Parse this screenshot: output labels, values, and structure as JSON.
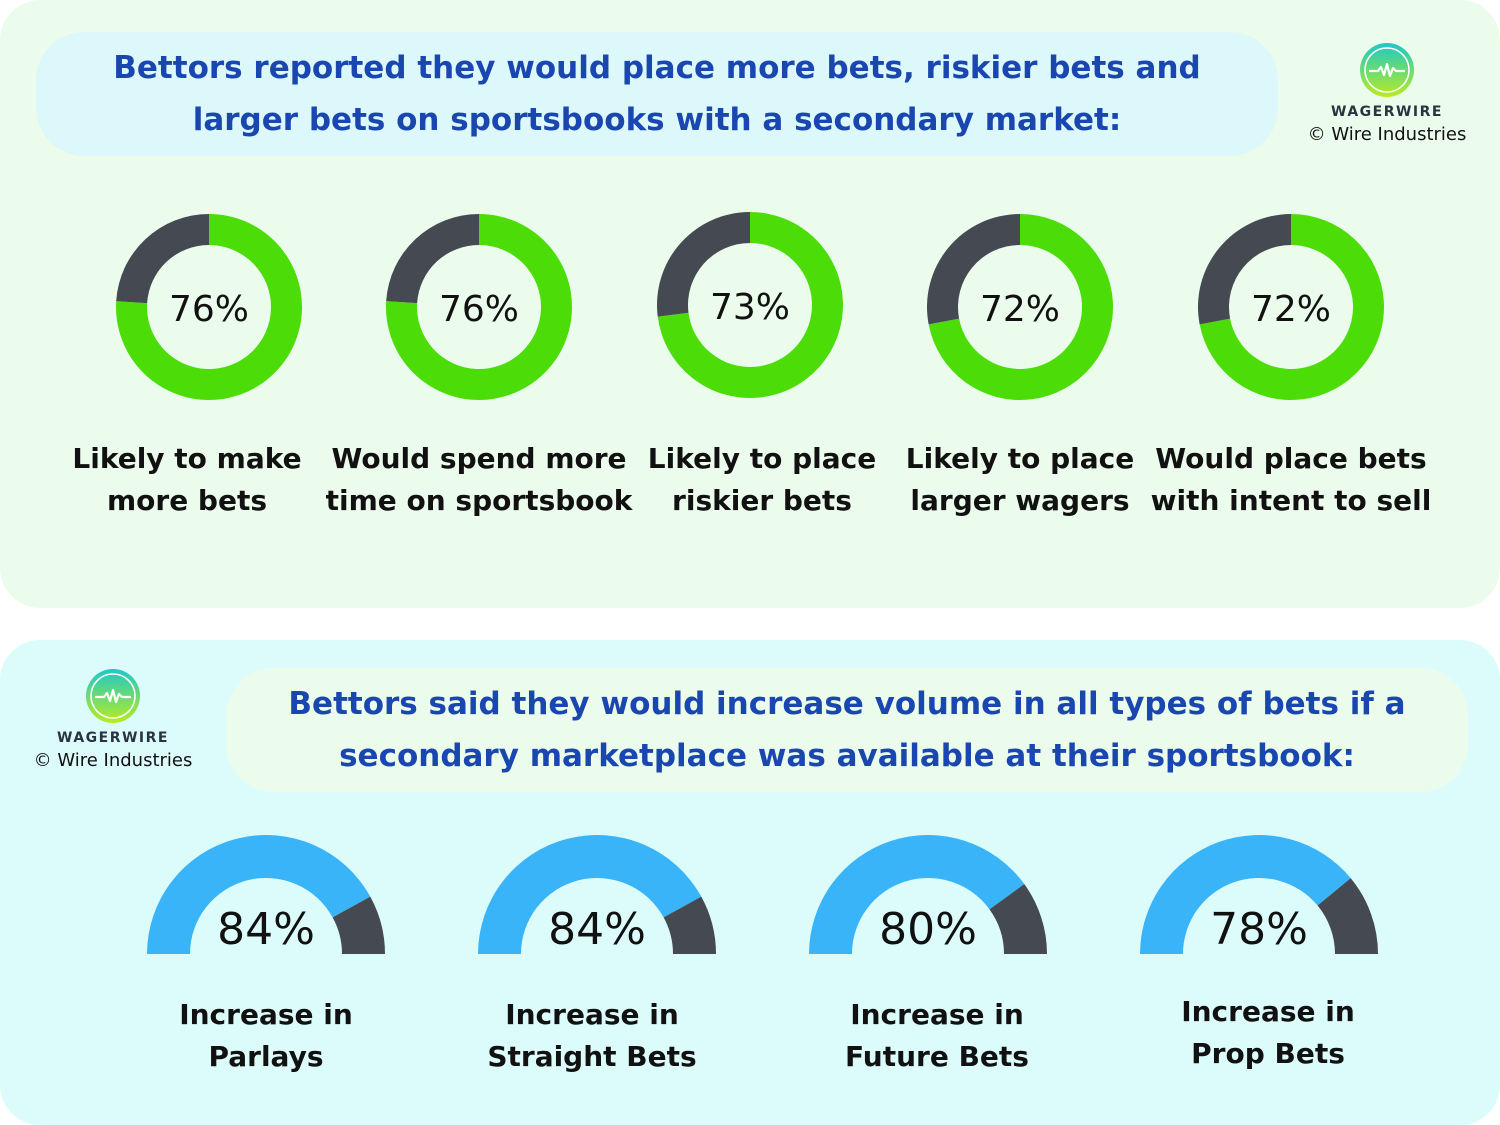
{
  "top": {
    "title_line1": "Bettors reported they would place more bets, riskier bets and",
    "title_line2": "larger bets on sportsbooks with a secondary market:"
  },
  "bottom": {
    "title_line1": "Bettors said they would increase volume in all types of bets if a",
    "title_line2": "secondary marketplace was available at their sportsbook:"
  },
  "brand": {
    "name": "WAGERWIRE",
    "copyright": "© Wire Industries",
    "logo_icon": "heartbeat-circle-icon"
  },
  "colors": {
    "green": "#4cdc08",
    "blue": "#3ab4f8",
    "dark": "#454a52",
    "title_blue": "#1a46b0"
  },
  "chart_data": [
    {
      "type": "pie",
      "style": "donut",
      "items": [
        {
          "value": 76,
          "label": "76%",
          "line1": "Likely to make",
          "line2": "more bets"
        },
        {
          "value": 76,
          "label": "76%",
          "line1": "Would spend more",
          "line2": "time on sportsbook"
        },
        {
          "value": 73,
          "label": "73%",
          "line1": "Likely to place",
          "line2": "riskier bets"
        },
        {
          "value": 72,
          "label": "72%",
          "line1": "Likely to place",
          "line2": "larger wagers"
        },
        {
          "value": 72,
          "label": "72%",
          "line1": "Would place bets",
          "line2": "with intent to sell"
        }
      ]
    },
    {
      "type": "pie",
      "style": "semicircle-gauge",
      "items": [
        {
          "value": 84,
          "label": "84%",
          "line1": "Increase in",
          "line2": "Parlays"
        },
        {
          "value": 84,
          "label": "84%",
          "line1": "Increase in",
          "line2": "Straight Bets"
        },
        {
          "value": 80,
          "label": "80%",
          "line1": "Increase in",
          "line2": "Future Bets"
        },
        {
          "value": 78,
          "label": "78%",
          "line1": "Increase in",
          "line2": "Prop Bets"
        }
      ]
    }
  ]
}
